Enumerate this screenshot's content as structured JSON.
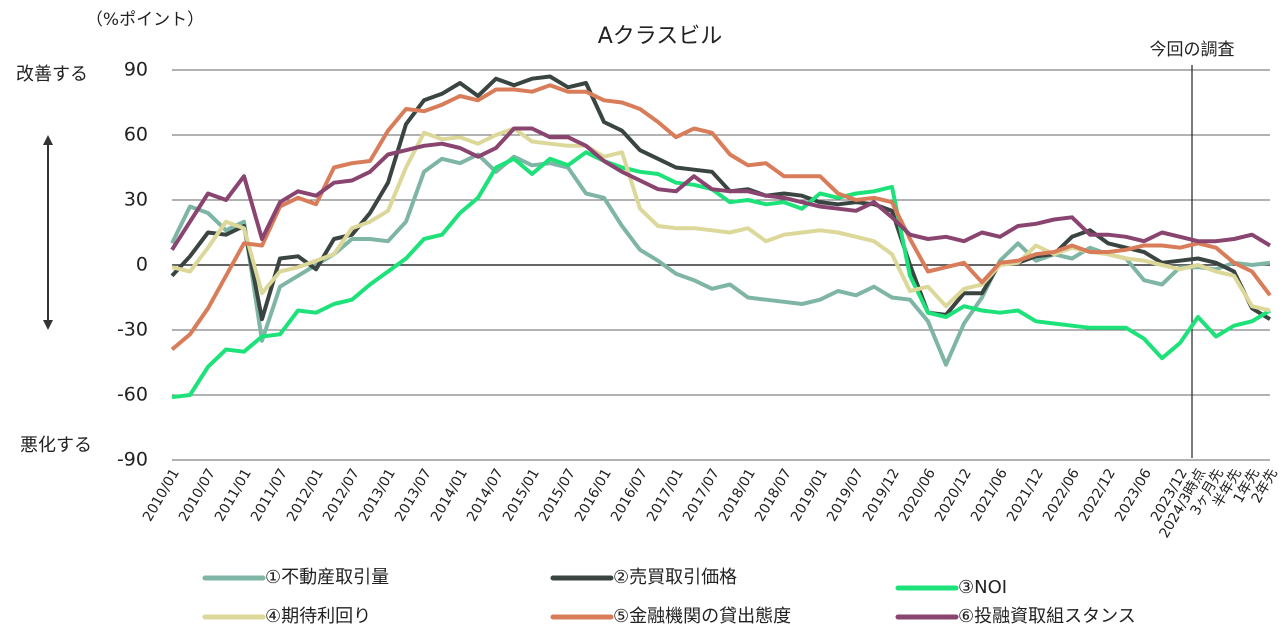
{
  "chart_data": {
    "type": "line",
    "title": "Aクラスビル",
    "y_label": "（%ポイント）",
    "y_annotations": {
      "top": "改善する",
      "bottom": "悪化する"
    },
    "annotation": {
      "label": "今回の調査",
      "x": "2024/3時点"
    },
    "categories": [
      "2010/01",
      null,
      "2010/07",
      null,
      "2011/01",
      null,
      "2011/07",
      null,
      "2012/01",
      null,
      "2012/07",
      null,
      "2013/01",
      null,
      "2013/07",
      null,
      "2014/01",
      null,
      "2014/07",
      null,
      "2015/01",
      null,
      "2015/07",
      null,
      "2016/01",
      null,
      "2016/07",
      null,
      "2017/01",
      null,
      "2017/07",
      null,
      "2018/01",
      null,
      "2018/07",
      null,
      "2019/01",
      null,
      "2019/07",
      null,
      "2019/12",
      null,
      "2020/06",
      null,
      "2020/12",
      null,
      "2021/06",
      null,
      "2021/12",
      null,
      "2022/06",
      null,
      "2022/12",
      null,
      "2023/06",
      null,
      "2023/12",
      "2024/3時点",
      "3ヶ月先",
      "半年先",
      "1年先",
      "2年先"
    ],
    "series": [
      {
        "name": "①不動産取引量",
        "color": "#7fb5a5",
        "values": [
          10,
          27,
          24,
          16,
          20,
          -35,
          -10,
          -5,
          0,
          5,
          12,
          12,
          11,
          20,
          43,
          49,
          47,
          51,
          43,
          50,
          46,
          47,
          45,
          33,
          31,
          18,
          7,
          2,
          -4,
          -7,
          -11,
          -9,
          -15,
          -16,
          -17,
          -18,
          -16,
          -12,
          -14,
          -10,
          -15,
          -16,
          -26,
          -46,
          -27,
          -15,
          2,
          10,
          2,
          5,
          3,
          8,
          5,
          3,
          -7,
          -9,
          -1,
          -1,
          -2,
          1,
          0,
          1
        ]
      },
      {
        "name": "②売買取引価格",
        "color": "#3a4440",
        "values": [
          -5,
          4,
          15,
          14,
          18,
          -25,
          3,
          4,
          -2,
          12,
          14,
          24,
          38,
          65,
          76,
          79,
          84,
          78,
          86,
          83,
          86,
          87,
          82,
          84,
          66,
          62,
          53,
          49,
          45,
          44,
          43,
          34,
          35,
          32,
          33,
          32,
          29,
          28,
          29,
          28,
          25,
          0,
          -22,
          -23,
          -13,
          -13,
          1,
          1,
          4,
          5,
          13,
          16,
          10,
          8,
          6,
          1,
          2,
          3,
          1,
          -3,
          -20,
          -25
        ]
      },
      {
        "name": "③NOI",
        "color": "#1de27a",
        "values": [
          -61,
          -60,
          -47,
          -39,
          -40,
          -33,
          -32,
          -21,
          -22,
          -18,
          -16,
          -9,
          -3,
          3,
          12,
          14,
          24,
          31,
          45,
          49,
          42,
          49,
          46,
          52,
          48,
          45,
          43,
          42,
          38,
          37,
          35,
          29,
          30,
          28,
          29,
          26,
          33,
          31,
          33,
          34,
          36,
          -5,
          -22,
          -24,
          -19,
          -21,
          -22,
          -21,
          -26,
          -27,
          -28,
          -29,
          -29,
          -29,
          -34,
          -43,
          -36,
          -24,
          -33,
          -28,
          -26,
          -21
        ]
      },
      {
        "name": "④期待利回り",
        "color": "#dcd89a",
        "values": [
          -1,
          -3,
          8,
          20,
          17,
          -13,
          -3,
          -1,
          2,
          5,
          17,
          20,
          25,
          45,
          61,
          58,
          59,
          56,
          60,
          63,
          57,
          56,
          55,
          55,
          50,
          52,
          26,
          18,
          17,
          17,
          16,
          15,
          17,
          11,
          14,
          15,
          16,
          15,
          13,
          11,
          5,
          -12,
          -10,
          -19,
          -11,
          -9,
          0,
          1,
          9,
          5,
          8,
          6,
          5,
          3,
          2,
          0,
          -2,
          0,
          -3,
          -5,
          -19,
          -21
        ]
      },
      {
        "name": "⑤金融機関の貸出態度",
        "color": "#d87c5a",
        "values": [
          -39,
          -32,
          -20,
          -5,
          10,
          9,
          27,
          31,
          28,
          45,
          47,
          48,
          62,
          72,
          71,
          74,
          78,
          76,
          81,
          81,
          80,
          83,
          80,
          80,
          76,
          75,
          72,
          66,
          59,
          63,
          61,
          51,
          46,
          47,
          41,
          41,
          41,
          33,
          30,
          31,
          29,
          12,
          -3,
          -1,
          1,
          -8,
          1,
          2,
          5,
          6,
          9,
          6,
          6,
          7,
          9,
          9,
          8,
          10,
          8,
          1,
          -3,
          -14
        ]
      },
      {
        "name": "⑥投融資取組スタンス",
        "color": "#8a4470",
        "values": [
          7,
          20,
          33,
          30,
          41,
          12,
          29,
          34,
          32,
          38,
          39,
          43,
          51,
          53,
          55,
          56,
          54,
          50,
          54,
          63,
          63,
          59,
          59,
          55,
          48,
          43,
          39,
          35,
          34,
          41,
          35,
          34,
          34,
          32,
          31,
          29,
          27,
          26,
          25,
          29,
          22,
          14,
          12,
          13,
          11,
          15,
          13,
          18,
          19,
          21,
          22,
          14,
          14,
          13,
          11,
          15,
          13,
          11,
          11,
          12,
          14,
          9
        ]
      }
    ],
    "ylim": [
      -90,
      90
    ],
    "yticks": [
      -90,
      -60,
      -30,
      0,
      30,
      60,
      90
    ],
    "grid": true
  }
}
